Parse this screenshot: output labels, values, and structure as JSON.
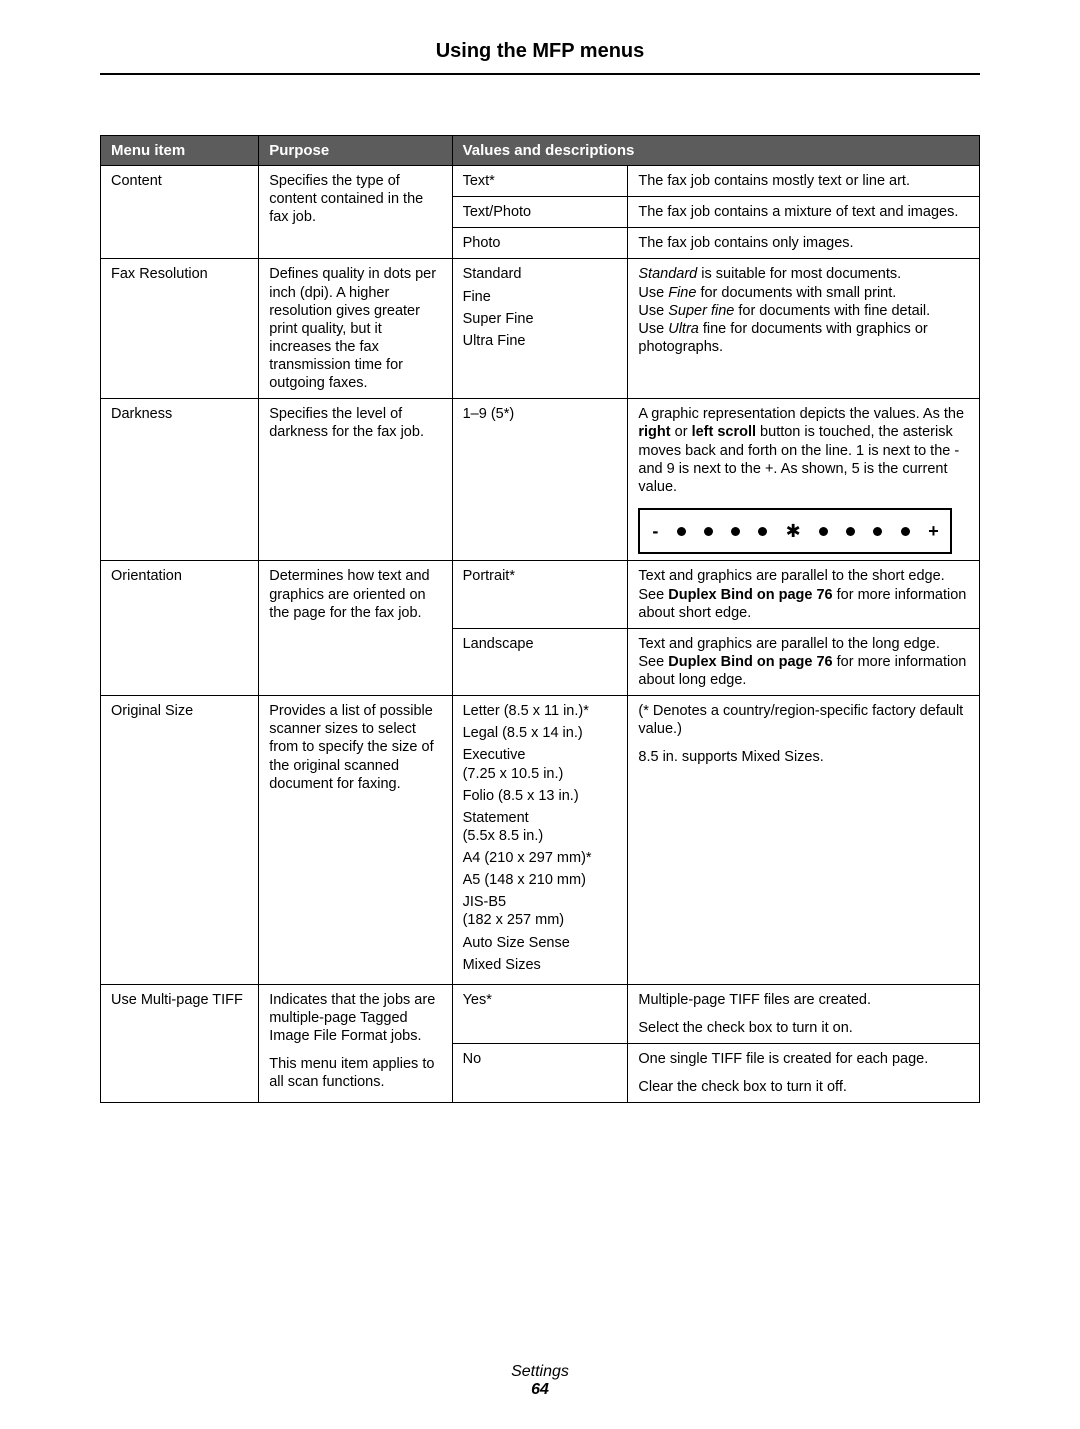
{
  "title": "Using the MFP menus",
  "headers": {
    "menu_item": "Menu item",
    "purpose": "Purpose",
    "values_desc": "Values and descriptions"
  },
  "rows": {
    "content": {
      "name": "Content",
      "purpose": "Specifies the type of content contained in the fax job.",
      "values": {
        "text": "Text*",
        "text_photo": "Text/Photo",
        "photo": "Photo"
      },
      "descs": {
        "text": "The fax job contains mostly text or line art.",
        "text_photo": "The fax job contains a mixture of text and images.",
        "photo": "The fax job contains only images."
      }
    },
    "fax_res": {
      "name": "Fax Resolution",
      "purpose": "Defines quality in dots per inch (dpi). A higher resolution gives greater print quality, but it increases the fax transmission time for outgoing faxes.",
      "values": {
        "l1": "Standard",
        "l2": "Fine",
        "l3": "Super Fine",
        "l4": "Ultra Fine"
      },
      "desc": {
        "t1a": "Standard",
        "t1b": " is suitable for most documents.",
        "t2a": "Use ",
        "t2b": "Fine",
        "t2c": " for documents with small print.",
        "t3a": "Use ",
        "t3b": "Super fine",
        "t3c": " for documents with fine detail.",
        "t4a": "Use ",
        "t4b": "Ultra",
        "t4c": " fine for documents with graphics or photographs."
      }
    },
    "darkness": {
      "name": "Darkness",
      "purpose": "Specifies the level of darkness for the fax job.",
      "value": "1–9 (5*)",
      "desc": {
        "p1": "A graphic representation depicts the values. As the ",
        "b1": "right",
        "p2": " or ",
        "b2": "left scroll",
        "p3": " button is touched, the asterisk moves back and forth on the line. 1 is next to the - and 9 is next to the +. As shown, 5 is the current value."
      },
      "graphic_minus": "-",
      "graphic_plus": "+"
    },
    "orientation": {
      "name": "Orientation",
      "purpose": "Determines how text and graphics are oriented on the page for the fax job.",
      "values": {
        "portrait": "Portrait*",
        "landscape": "Landscape"
      },
      "descs": {
        "portrait": {
          "t1": "Text and graphics are parallel to the short edge. See ",
          "b": "Duplex Bind on page 76",
          "t2": " for more information about short edge."
        },
        "landscape": {
          "t1": "Text and graphics are parallel to the long edge. See ",
          "b": "Duplex Bind on page 76",
          "t2": " for more information about long edge."
        }
      }
    },
    "original_size": {
      "name": "Original Size",
      "purpose": "Provides a list of possible scanner sizes to select from to specify the size of the original scanned document for faxing.",
      "values": {
        "v1": "Letter (8.5 x 11 in.)*",
        "v2": "Legal (8.5 x 14 in.)",
        "v3a": "Executive",
        "v3b": "(7.25 x 10.5 in.)",
        "v4": "Folio (8.5 x 13 in.)",
        "v5a": "Statement",
        "v5b": "(5.5x 8.5 in.)",
        "v6": "A4 (210 x 297 mm)*",
        "v7": "A5 (148 x 210 mm)",
        "v8a": "JIS-B5",
        "v8b": "(182 x 257 mm)",
        "v9": "Auto Size Sense",
        "v10": "Mixed Sizes"
      },
      "desc": {
        "d1": "(* Denotes a country/region-specific factory default value.)",
        "d2": "8.5 in. supports Mixed Sizes."
      }
    },
    "tiff": {
      "name": "Use Multi-page TIFF",
      "purpose1": "Indicates that the jobs are multiple-page Tagged Image File Format jobs.",
      "purpose2": "This menu item applies to all scan functions.",
      "values": {
        "yes": "Yes*",
        "no": "No"
      },
      "descs": {
        "yes": {
          "d1": "Multiple-page TIFF files are created.",
          "d2": "Select the check box to turn it on."
        },
        "no": {
          "d1": "One single TIFF file is created for each page.",
          "d2": "Clear the check box to turn it off."
        }
      }
    }
  },
  "footer": {
    "settings": "Settings",
    "page": "64"
  }
}
